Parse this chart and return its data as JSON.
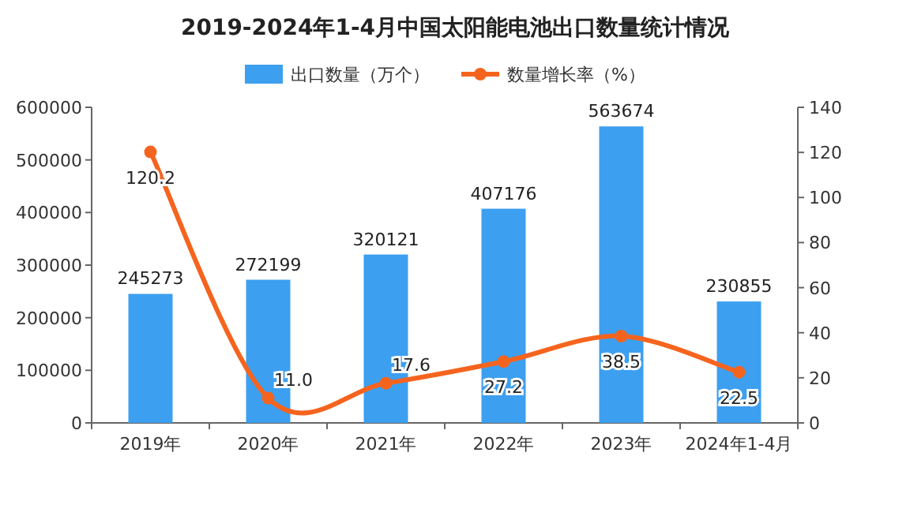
{
  "chart_data": {
    "type": "bar",
    "title": "2019-2024年1-4月中国太阳能电池出口数量统计情况",
    "categories": [
      "2019年",
      "2020年",
      "2021年",
      "2022年",
      "2023年",
      "2024年1-4月"
    ],
    "series": [
      {
        "name": "出口数量（万个）",
        "color": "#3d9ff0",
        "values": [
          245273,
          272199,
          320121,
          407176,
          563674,
          230855
        ],
        "value_labels": [
          "245273",
          "272199",
          "320121",
          "407176",
          "563674",
          "230855"
        ]
      },
      {
        "name": "数量增长率（%）",
        "type": "line",
        "axis": "y2",
        "color": "#f5641e",
        "marker": "circle",
        "values": [
          120.2,
          11.0,
          17.6,
          27.2,
          38.5,
          22.5
        ],
        "value_labels": [
          "120.2",
          "11.0",
          "17.6",
          "27.2",
          "38.5",
          "22.5"
        ]
      }
    ],
    "ylim": [
      0,
      600000
    ],
    "yticks": [
      0,
      100000,
      200000,
      300000,
      400000,
      500000,
      600000
    ],
    "y2lim": [
      0,
      140
    ],
    "y2ticks": [
      0,
      20,
      40,
      60,
      80,
      100,
      120,
      140
    ],
    "legend": "top",
    "grid": false
  }
}
